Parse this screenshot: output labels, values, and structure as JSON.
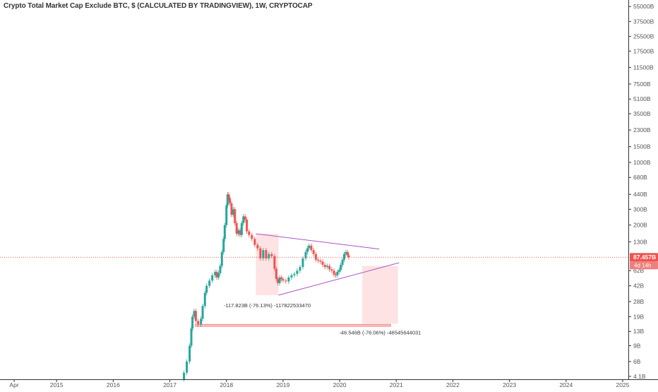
{
  "chart_data": {
    "type": "candlestick",
    "title": "Crypto Total Market Cap Exclude BTC, $ (CALCULATED BY TRADINGVIEW), 1W, CRYPTOCAP",
    "y_scale": "log",
    "ylim": [
      3.8,
      65000
    ],
    "xlim": [
      2014.0,
      2025.1
    ],
    "x_ticks": [
      {
        "label": "Apr",
        "value": 2014.25
      },
      {
        "label": "2015",
        "value": 2015.0
      },
      {
        "label": "2016",
        "value": 2016.0
      },
      {
        "label": "2017",
        "value": 2017.0
      },
      {
        "label": "2018",
        "value": 2018.0
      },
      {
        "label": "2019",
        "value": 2019.0
      },
      {
        "label": "2020",
        "value": 2020.0
      },
      {
        "label": "2021",
        "value": 2021.0
      },
      {
        "label": "2022",
        "value": 2022.0
      },
      {
        "label": "2023",
        "value": 2023.0
      },
      {
        "label": "2024",
        "value": 2024.0
      },
      {
        "label": "2025",
        "value": 2025.0
      }
    ],
    "y_ticks": [
      {
        "label": "55000B",
        "value": 55000
      },
      {
        "label": "37500B",
        "value": 37500
      },
      {
        "label": "25500B",
        "value": 25500
      },
      {
        "label": "17500B",
        "value": 17500
      },
      {
        "label": "11500B",
        "value": 11500
      },
      {
        "label": "7500B",
        "value": 7500
      },
      {
        "label": "5100B",
        "value": 5100
      },
      {
        "label": "3500B",
        "value": 3500
      },
      {
        "label": "2300B",
        "value": 2300
      },
      {
        "label": "1500B",
        "value": 1500
      },
      {
        "label": "1000B",
        "value": 1000
      },
      {
        "label": "680B",
        "value": 680
      },
      {
        "label": "440B",
        "value": 440
      },
      {
        "label": "300B",
        "value": 300
      },
      {
        "label": "200B",
        "value": 200
      },
      {
        "label": "130B",
        "value": 130
      },
      {
        "label": "62B",
        "value": 62
      },
      {
        "label": "42B",
        "value": 42
      },
      {
        "label": "28B",
        "value": 28
      },
      {
        "label": "19B",
        "value": 19
      },
      {
        "label": "13B",
        "value": 13
      },
      {
        "label": "9B",
        "value": 9
      },
      {
        "label": "6B",
        "value": 6
      },
      {
        "label": "4.1B",
        "value": 4.1
      }
    ],
    "current_price": {
      "label": "87.457B",
      "value": 87.457,
      "countdown": "4d 14h"
    },
    "series": [
      {
        "type": "weekly-close-path",
        "points": [
          [
            2017.15,
            3.8
          ],
          [
            2017.25,
            4.5
          ],
          [
            2017.3,
            6
          ],
          [
            2017.35,
            9
          ],
          [
            2017.38,
            14
          ],
          [
            2017.4,
            19
          ],
          [
            2017.43,
            22
          ],
          [
            2017.46,
            17
          ],
          [
            2017.5,
            15.5
          ],
          [
            2017.55,
            18
          ],
          [
            2017.58,
            25
          ],
          [
            2017.62,
            35
          ],
          [
            2017.65,
            42
          ],
          [
            2017.7,
            48
          ],
          [
            2017.75,
            55
          ],
          [
            2017.8,
            60
          ],
          [
            2017.83,
            52
          ],
          [
            2017.86,
            58
          ],
          [
            2017.89,
            70
          ],
          [
            2017.92,
            100
          ],
          [
            2017.95,
            140
          ],
          [
            2017.97,
            200
          ],
          [
            2018.0,
            330
          ],
          [
            2018.02,
            440
          ],
          [
            2018.04,
            400
          ],
          [
            2018.06,
            350
          ],
          [
            2018.09,
            260
          ],
          [
            2018.12,
            300
          ],
          [
            2018.15,
            210
          ],
          [
            2018.18,
            160
          ],
          [
            2018.21,
            175
          ],
          [
            2018.24,
            155
          ],
          [
            2018.27,
            210
          ],
          [
            2018.3,
            250
          ],
          [
            2018.33,
            230
          ],
          [
            2018.36,
            170
          ],
          [
            2018.4,
            155
          ],
          [
            2018.45,
            140
          ],
          [
            2018.5,
            120
          ],
          [
            2018.55,
            110
          ],
          [
            2018.6,
            85
          ],
          [
            2018.65,
            105
          ],
          [
            2018.7,
            85
          ],
          [
            2018.75,
            95
          ],
          [
            2018.8,
            90
          ],
          [
            2018.85,
            65
          ],
          [
            2018.88,
            50
          ],
          [
            2018.91,
            45
          ],
          [
            2018.94,
            52
          ],
          [
            2018.97,
            50
          ],
          [
            2019.0,
            48
          ],
          [
            2019.05,
            47
          ],
          [
            2019.1,
            52
          ],
          [
            2019.15,
            55
          ],
          [
            2019.2,
            57
          ],
          [
            2019.25,
            62
          ],
          [
            2019.3,
            68
          ],
          [
            2019.35,
            85
          ],
          [
            2019.4,
            100
          ],
          [
            2019.43,
            110
          ],
          [
            2019.46,
            118
          ],
          [
            2019.5,
            105
          ],
          [
            2019.54,
            95
          ],
          [
            2019.58,
            82
          ],
          [
            2019.62,
            80
          ],
          [
            2019.66,
            78
          ],
          [
            2019.7,
            72
          ],
          [
            2019.74,
            68
          ],
          [
            2019.78,
            70
          ],
          [
            2019.82,
            64
          ],
          [
            2019.86,
            62
          ],
          [
            2019.9,
            56
          ],
          [
            2019.93,
            55
          ],
          [
            2019.96,
            60
          ],
          [
            2019.99,
            63
          ],
          [
            2020.02,
            72
          ],
          [
            2020.05,
            82
          ],
          [
            2020.08,
            95
          ],
          [
            2020.11,
            100
          ],
          [
            2020.14,
            92
          ],
          [
            2020.16,
            87.457
          ]
        ]
      }
    ],
    "trend_lines": [
      {
        "from": [
          2018.52,
          160
        ],
        "to": [
          2020.7,
          108
        ],
        "color": "#a855c7"
      },
      {
        "from": [
          2018.92,
          33
        ],
        "to": [
          2021.05,
          76
        ],
        "color": "#a855c7"
      }
    ],
    "annotations": [
      {
        "label": "-117.823B (-76.13%) -117822533470",
        "box": {
          "x": [
            2018.52,
            2018.92
          ],
          "y": [
            33,
            160
          ]
        }
      },
      {
        "label": "-46.546B (-76.06%) -46545644031",
        "box": {
          "x": [
            2020.4,
            2021.03
          ],
          "y": [
            15.8,
            70
          ]
        }
      }
    ],
    "support_zone": {
      "x": [
        2017.45,
        2020.9
      ],
      "y": [
        14.8,
        15.6
      ]
    },
    "colors": {
      "up": "#26a69a",
      "down": "#ef5350",
      "price_line": "#ef5350",
      "trend": "#a855c7",
      "box_fill": "#fcdada",
      "axis_text": "#555555"
    }
  }
}
